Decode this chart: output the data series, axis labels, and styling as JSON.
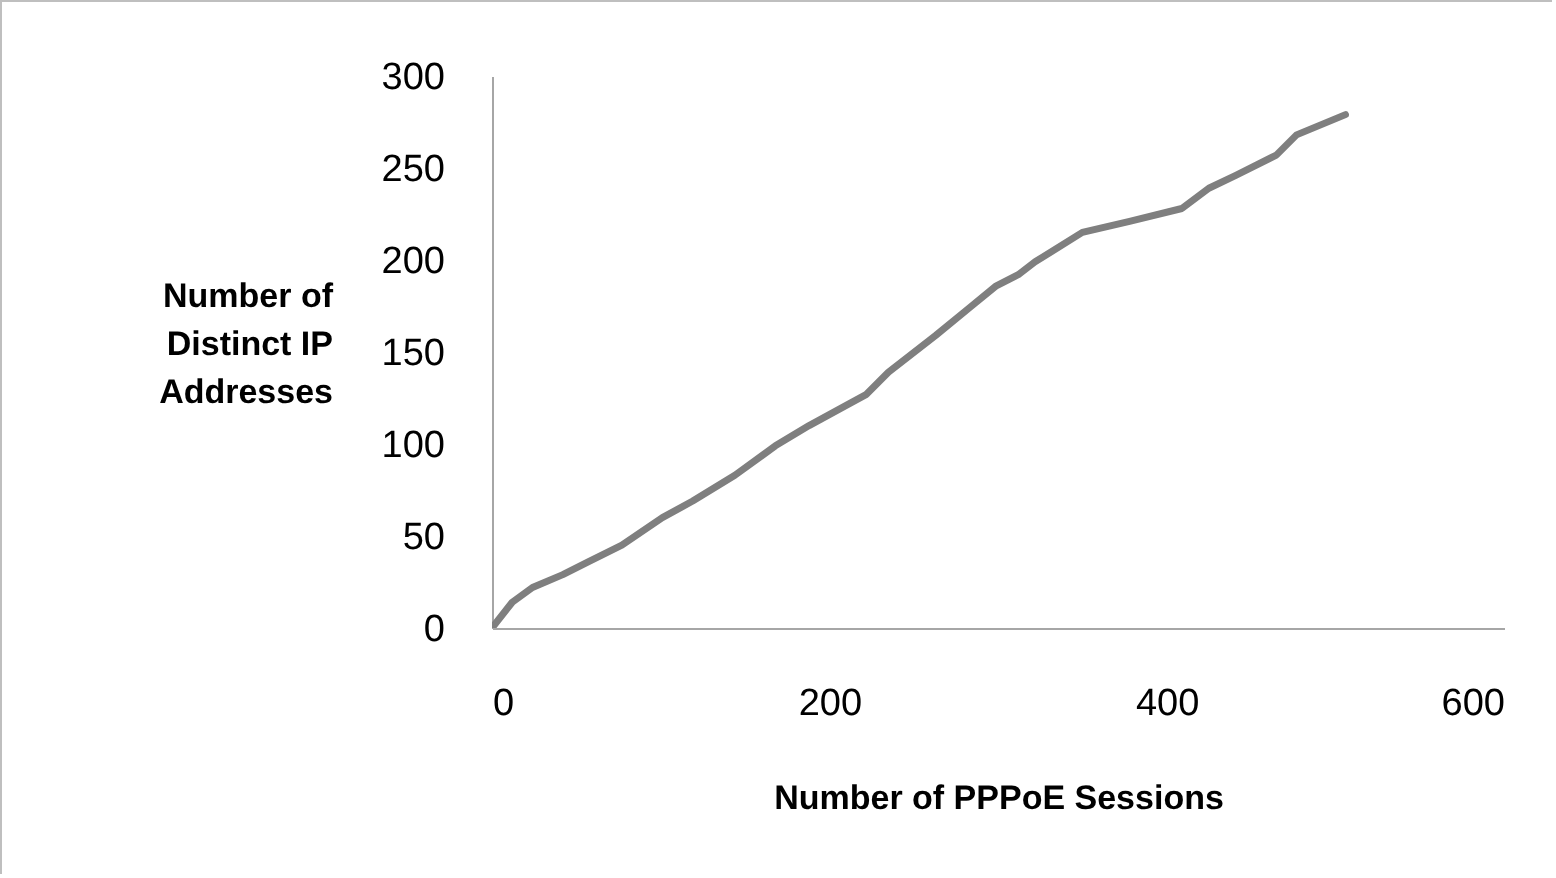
{
  "chart_data": {
    "type": "line",
    "xlabel": "Number of PPPoE Sessions",
    "ylabel": "Number of\nDistinct IP\nAddresses",
    "x": [
      0,
      12,
      24,
      42,
      57,
      77,
      101,
      119,
      144,
      168,
      188,
      210,
      222,
      235,
      263,
      283,
      299,
      312,
      322,
      350,
      378,
      409,
      425,
      441,
      465,
      477,
      506
    ],
    "series": [
      {
        "color": "#7f7f7f",
        "values": [
          0,
          14,
          22,
          29,
          36,
          45,
          60,
          69,
          83,
          99,
          110,
          121,
          127,
          139,
          159,
          174,
          186,
          192,
          199,
          215,
          221,
          228,
          239,
          246,
          257,
          268,
          279
        ]
      }
    ],
    "xlim": [
      0,
      600
    ],
    "xticks": [
      0,
      200,
      400,
      600
    ],
    "ylim": [
      0,
      300
    ],
    "yticks": [
      0,
      50,
      100,
      150,
      200,
      250,
      300
    ],
    "grid": false,
    "marker": "none",
    "line_style": "solid"
  }
}
